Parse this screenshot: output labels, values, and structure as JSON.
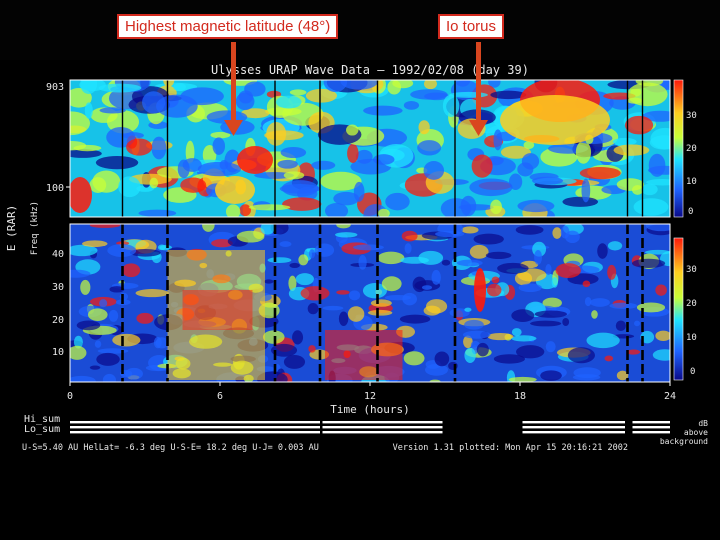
{
  "callouts": {
    "left": "Highest magnetic latitude (48°)",
    "right": "Io torus"
  },
  "chart_data": {
    "type": "heatmap",
    "title": "Ulysses URAP Wave Data — 1992/02/08 (day 39)",
    "xlabel": "Time (hours)",
    "x_ticks": [
      "0",
      "6",
      "12",
      "18",
      "24"
    ],
    "xlim": [
      0,
      24
    ],
    "ylabel": "E (RAR)",
    "ylabel_sub": "Freq (kHz)",
    "top_panel": {
      "y_ticks": [
        "903",
        "100"
      ]
    },
    "bottom_panel": {
      "y_ticks": [
        "40",
        "30",
        "20",
        "10"
      ]
    },
    "colorbar_top": {
      "ticks": [
        "30",
        "20",
        "10",
        "0"
      ]
    },
    "colorbar_bottom": {
      "ticks": [
        "30",
        "20",
        "10",
        "0"
      ]
    },
    "colorbar_unit": [
      "dB",
      "above",
      "background"
    ],
    "summary_rows": [
      "Hi_sum",
      "Lo_sum"
    ],
    "footer": {
      "geometry": "U-S=5.40 AU  HelLat= -6.3 deg  U-S-E= 18.2 deg  U-J= 0.003 AU",
      "version": "Version 1.31 plotted: Mon Apr 15 20:16:21 2002"
    },
    "events_hours": {
      "highest_magnetic_latitude": 6.2,
      "io_torus": 16.6
    },
    "colors": {
      "background": "#000000",
      "callout_border": "#d32a1e",
      "arrow": "#d9461f"
    }
  }
}
